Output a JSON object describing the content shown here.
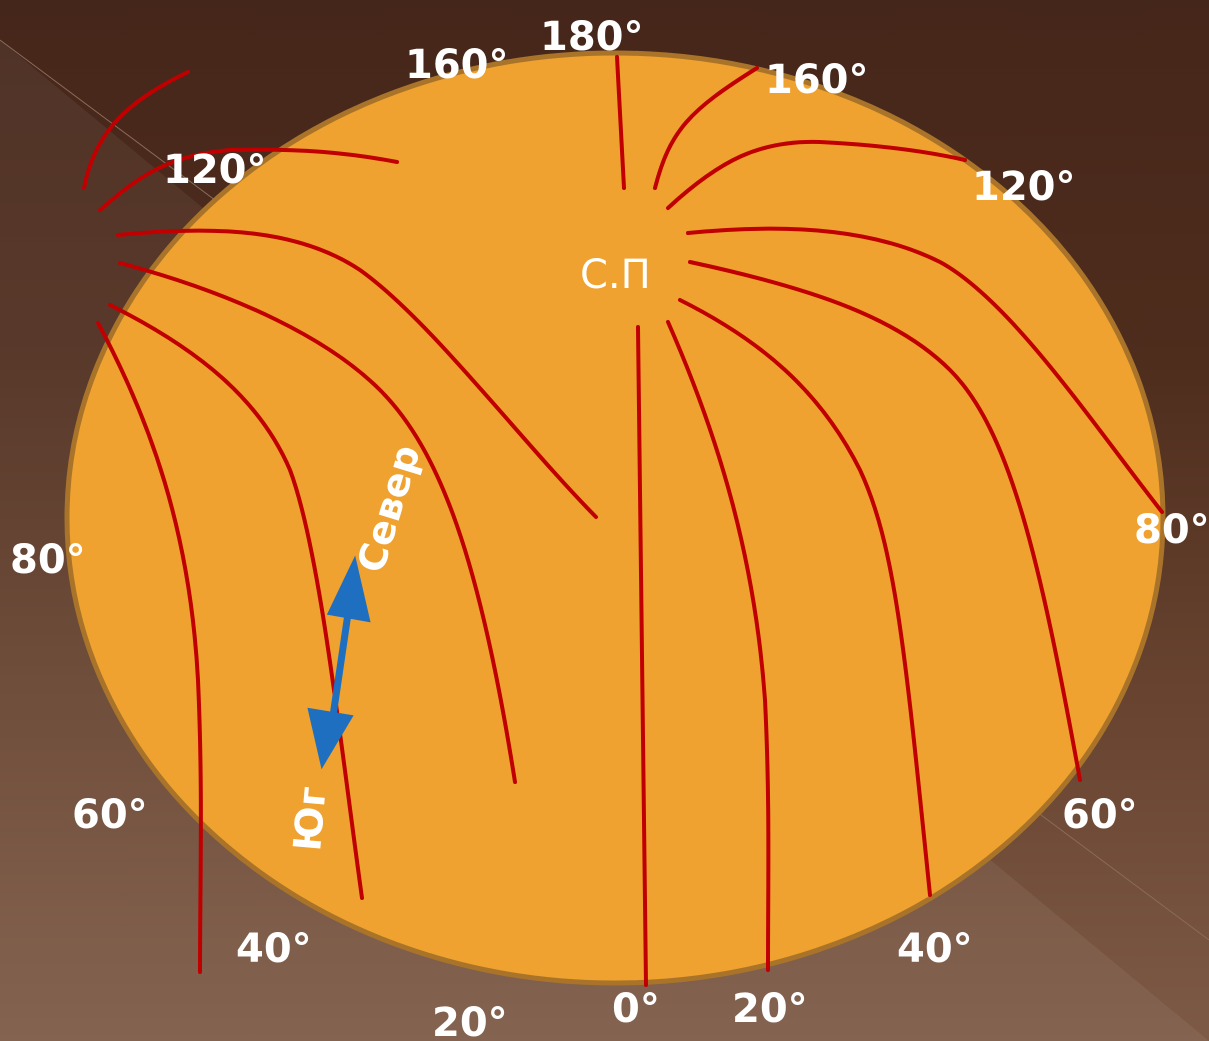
{
  "colors": {
    "globe_fill": "#efa22f",
    "globe_stroke": "#a9742a",
    "meridian": "#c00000",
    "arrow": "#1f6fc0",
    "text": "#ffffff"
  },
  "pole_label": "С.П",
  "direction": {
    "north": "Север",
    "south": "Юг"
  },
  "degree_labels": [
    "180°",
    "160°",
    "160°",
    "120°",
    "120°",
    "80°",
    "80°",
    "60°",
    "60°",
    "40°",
    "40°",
    "20°",
    "0°",
    "20°"
  ]
}
